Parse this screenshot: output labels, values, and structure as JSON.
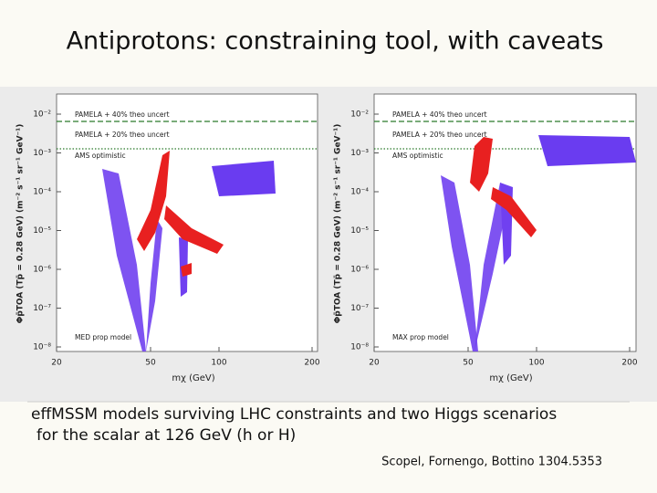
{
  "slide": {
    "title": "Antiprotons: constraining tool, with caveats",
    "plots": [
      {
        "legend": [
          "PAMELA + 40% theo uncert",
          "PAMELA + 20% theo uncert",
          "AMS optimistic"
        ],
        "model": "MED prop model",
        "y_label": "Φp̄TOA (Tp̄ = 0.28 GeV) (m⁻² s⁻¹ sr⁻¹ GeV⁻¹)",
        "x_label": "mχ (GeV)",
        "y_ticks": [
          "10⁻²",
          "10⁻³",
          "10⁻⁴",
          "10⁻⁵",
          "10⁻⁶",
          "10⁻⁷",
          "10⁻⁸"
        ],
        "x_ticks": [
          "20",
          "50",
          "100",
          "200"
        ]
      },
      {
        "legend": [
          "PAMELA + 40% theo uncert",
          "PAMELA + 20% theo uncert",
          "AMS optimistic"
        ],
        "model": "MAX prop model",
        "y_label": "Φp̄TOA (Tp̄ = 0.28 GeV) (m⁻² s⁻¹ sr⁻¹ GeV⁻¹)",
        "x_label": "mχ (GeV)",
        "y_ticks": [
          "10⁻²",
          "10⁻³",
          "10⁻⁴",
          "10⁻⁵",
          "10⁻⁶",
          "10⁻⁷",
          "10⁻⁸"
        ],
        "x_ticks": [
          "20",
          "50",
          "100",
          "200"
        ]
      }
    ],
    "caption": [
      "effMSSM  models surviving LHC constraints and two Higgs scenarios",
      "for the scalar at 126 GeV (h or H)"
    ],
    "citation": "Scopel, Fornengo, Bottino 1304.5353"
  }
}
